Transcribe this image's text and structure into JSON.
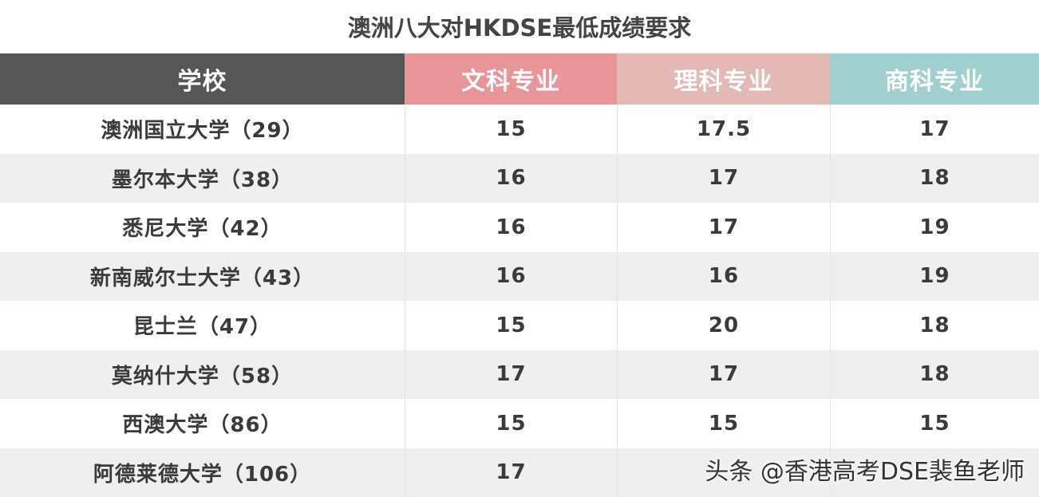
{
  "header": {
    "title": "澳洲八大对HKDSE最低成绩要求"
  },
  "table": {
    "columns": [
      "学校",
      "文科专业",
      "理科专业",
      "商科专业"
    ],
    "rows": [
      [
        "澳洲国立大学（29）",
        15,
        17.5,
        17
      ],
      [
        "墨尔本大学（38）",
        16,
        17,
        18
      ],
      [
        "悉尼大学（42）",
        16,
        17,
        19
      ],
      [
        "新南威尔士大学（43）",
        16,
        16,
        19
      ],
      [
        "昆士兰（47）",
        15,
        20,
        18
      ],
      [
        "莫纳什大学（58）",
        17,
        17,
        18
      ],
      [
        "西澳大学（86）",
        15,
        15,
        15
      ],
      [
        "阿德莱德大学（106）",
        17
      ]
    ]
  },
  "watermark": "头条 @香港高考DSE裴鱼老师"
}
